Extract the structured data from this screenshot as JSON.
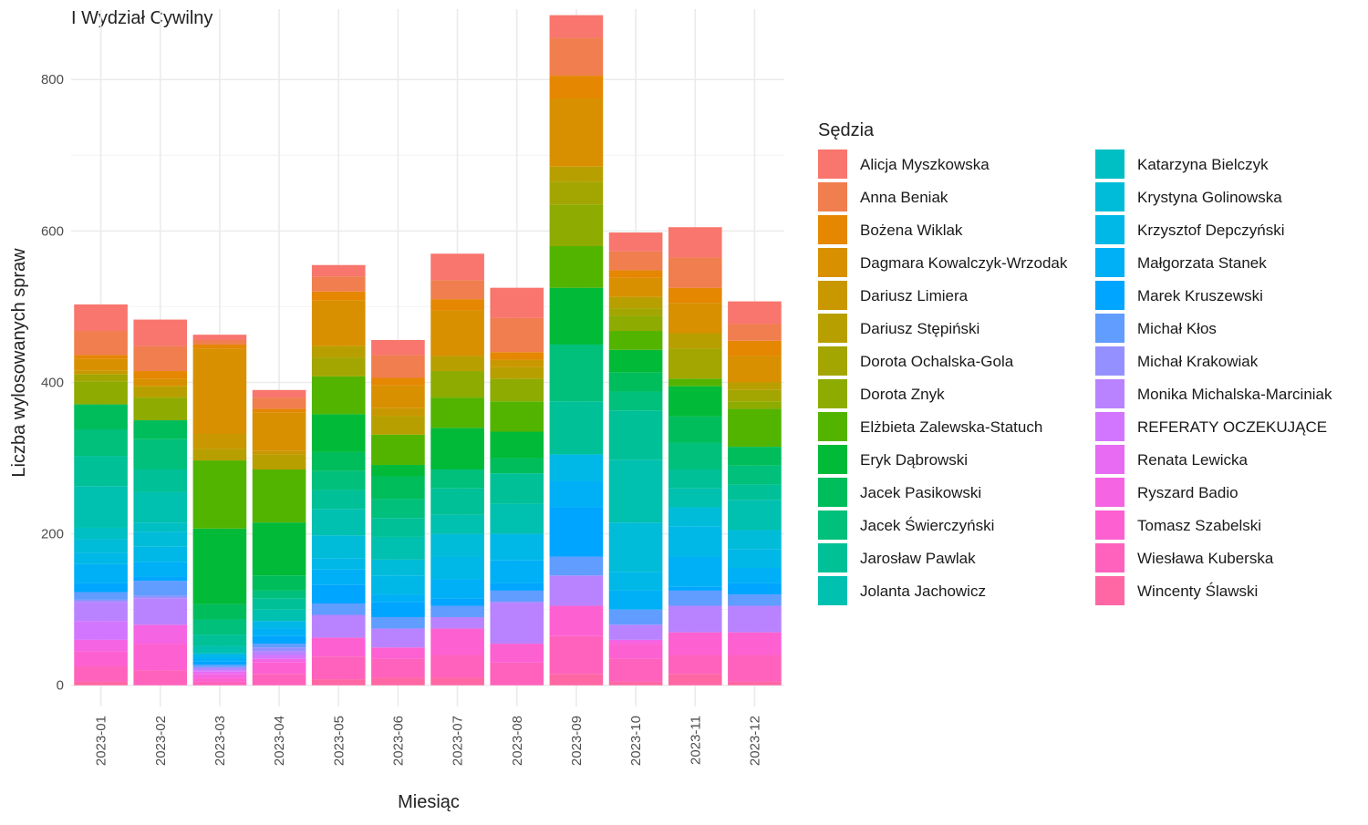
{
  "chart_data": {
    "type": "stacked_bar",
    "title": "I Wydział Cywilny",
    "x_label": "Miesiąc",
    "y_label": "Liczba wylosowanych spraw",
    "legend_title": "Sędzia",
    "categories": [
      "2023-01",
      "2023-02",
      "2023-03",
      "2023-04",
      "2023-05",
      "2023-06",
      "2023-07",
      "2023-08",
      "2023-09",
      "2023-10",
      "2023-11",
      "2023-12"
    ],
    "ylim": [
      -28,
      893
    ],
    "yticks": [
      0,
      200,
      400,
      600,
      800
    ],
    "grid": true,
    "legend_position": "right",
    "series": [
      {
        "name": "Alicja Myszkowska",
        "color": "#F8766D",
        "values": [
          35,
          35,
          7,
          10,
          15,
          20,
          35,
          40,
          30,
          25,
          40,
          30
        ]
      },
      {
        "name": "Anna Beniak",
        "color": "#F07E4E",
        "values": [
          32,
          33,
          6,
          15,
          20,
          30,
          25,
          45,
          50,
          25,
          40,
          22
        ]
      },
      {
        "name": "Bożena Wiklak",
        "color": "#E58700",
        "values": [
          5,
          10,
          5,
          5,
          12,
          10,
          15,
          10,
          30,
          10,
          20,
          20
        ]
      },
      {
        "name": "Dagmara Kowalczyk-Wrzodak",
        "color": "#D89000",
        "values": [
          15,
          10,
          113,
          50,
          60,
          30,
          60,
          0,
          90,
          25,
          40,
          35
        ]
      },
      {
        "name": "Dariusz Limiera",
        "color": "#C99800",
        "values": [
          5,
          0,
          20,
          5,
          0,
          10,
          0,
          10,
          0,
          0,
          0,
          0
        ]
      },
      {
        "name": "Dariusz Stępiński",
        "color": "#B89F00",
        "values": [
          0,
          15,
          15,
          20,
          15,
          25,
          20,
          15,
          20,
          15,
          20,
          10
        ]
      },
      {
        "name": "Dorota Ochalska-Gola",
        "color": "#A3A500",
        "values": [
          10,
          0,
          0,
          0,
          25,
          0,
          0,
          0,
          30,
          10,
          40,
          15
        ]
      },
      {
        "name": "Dorota Znyk",
        "color": "#8DAB00",
        "values": [
          30,
          30,
          0,
          0,
          0,
          0,
          35,
          30,
          55,
          20,
          0,
          10
        ]
      },
      {
        "name": "Elżbieta Zalewska-Statuch",
        "color": "#53B400",
        "values": [
          0,
          0,
          90,
          70,
          50,
          40,
          40,
          40,
          55,
          25,
          10,
          50
        ]
      },
      {
        "name": "Eryk Dąbrowski",
        "color": "#00BA38",
        "values": [
          0,
          0,
          100,
          70,
          50,
          15,
          55,
          35,
          75,
          30,
          40,
          0
        ]
      },
      {
        "name": "Jacek Pasikowski",
        "color": "#00BD5C",
        "values": [
          33,
          25,
          20,
          20,
          25,
          30,
          0,
          20,
          0,
          25,
          35,
          25
        ]
      },
      {
        "name": "Jacek Świerczyński",
        "color": "#00C07B",
        "values": [
          35,
          40,
          20,
          10,
          25,
          25,
          25,
          0,
          75,
          25,
          35,
          25
        ]
      },
      {
        "name": "Jarosław Pawlak",
        "color": "#00C097",
        "values": [
          40,
          30,
          15,
          15,
          25,
          25,
          35,
          40,
          70,
          65,
          25,
          20
        ]
      },
      {
        "name": "Jolanta Jachowicz",
        "color": "#00C0AF",
        "values": [
          55,
          40,
          10,
          15,
          35,
          30,
          25,
          40,
          0,
          83,
          25,
          40
        ]
      },
      {
        "name": "Katarzyna Bielczyk",
        "color": "#00BFC4",
        "values": [
          15,
          12,
          0,
          0,
          0,
          0,
          0,
          0,
          0,
          0,
          0,
          0
        ]
      },
      {
        "name": "Krystyna Golinowska",
        "color": "#00BCD8",
        "values": [
          18,
          20,
          0,
          0,
          30,
          21,
          30,
          0,
          0,
          65,
          25,
          25
        ]
      },
      {
        "name": "Krzysztof Depczyński",
        "color": "#00B8E7",
        "values": [
          15,
          20,
          5,
          10,
          15,
          25,
          30,
          35,
          35,
          25,
          40,
          25
        ]
      },
      {
        "name": "Małgorzata Stanek",
        "color": "#00B0F6",
        "values": [
          25,
          20,
          5,
          10,
          20,
          10,
          25,
          30,
          35,
          25,
          40,
          20
        ]
      },
      {
        "name": "Marek Kruszewski",
        "color": "#00A5FF",
        "values": [
          12,
          5,
          5,
          10,
          25,
          20,
          10,
          10,
          65,
          0,
          5,
          15
        ]
      },
      {
        "name": "Michał Kłos",
        "color": "#619CFF",
        "values": [
          10,
          20,
          3,
          5,
          15,
          15,
          15,
          15,
          25,
          20,
          20,
          15
        ]
      },
      {
        "name": "Michał Krakowiak",
        "color": "#9590FF",
        "values": [
          3,
          3,
          2,
          5,
          0,
          0,
          0,
          0,
          0,
          0,
          0,
          0
        ]
      },
      {
        "name": "Monika Michalska-Marciniak",
        "color": "#B983FF",
        "values": [
          25,
          35,
          2,
          5,
          30,
          25,
          15,
          55,
          40,
          20,
          35,
          35
        ]
      },
      {
        "name": "REFERATY OCZEKUJĄCE",
        "color": "#D376FF",
        "values": [
          25,
          0,
          2,
          5,
          0,
          0,
          0,
          0,
          0,
          0,
          0,
          0
        ]
      },
      {
        "name": "Renata Lewicka",
        "color": "#E76BF3",
        "values": [
          0,
          0,
          3,
          0,
          0,
          0,
          0,
          0,
          0,
          0,
          0,
          0
        ]
      },
      {
        "name": "Ryszard Badio",
        "color": "#F564E3",
        "values": [
          15,
          25,
          5,
          5,
          0,
          0,
          0,
          0,
          0,
          5,
          0,
          0
        ]
      },
      {
        "name": "Tomasz Szabelski",
        "color": "#FD61D1",
        "values": [
          20,
          35,
          5,
          15,
          25,
          15,
          35,
          25,
          40,
          20,
          30,
          30
        ]
      },
      {
        "name": "Wiesława Kuberska",
        "color": "#FF62BC",
        "values": [
          20,
          20,
          5,
          15,
          30,
          25,
          30,
          30,
          50,
          30,
          25,
          35
        ]
      },
      {
        "name": "Wincenty Ślawski",
        "color": "#FF67A4",
        "values": [
          5,
          0,
          0,
          0,
          8,
          10,
          10,
          0,
          15,
          5,
          15,
          5
        ]
      }
    ]
  }
}
